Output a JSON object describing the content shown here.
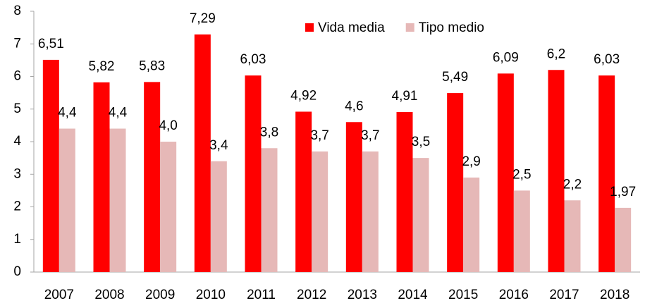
{
  "chart_data": {
    "type": "bar",
    "categories": [
      "2007",
      "2008",
      "2009",
      "2010",
      "2011",
      "2012",
      "2013",
      "2014",
      "2015",
      "2016",
      "2017",
      "2018"
    ],
    "series": [
      {
        "name": "Vida media",
        "color": "#ff0000",
        "values": [
          6.51,
          5.82,
          5.83,
          7.29,
          6.03,
          4.92,
          4.6,
          4.91,
          5.49,
          6.09,
          6.2,
          6.03
        ],
        "value_labels": [
          "6,51",
          "5,82",
          "5,83",
          "7,29",
          "6,03",
          "4,92",
          "4,6",
          "4,91",
          "5,49",
          "6,09",
          "6,2",
          "6,03"
        ]
      },
      {
        "name": "Tipo medio",
        "color": "#e6b8b7",
        "values": [
          4.4,
          4.4,
          4.0,
          3.4,
          3.8,
          3.7,
          3.7,
          3.5,
          2.9,
          2.5,
          2.2,
          1.97
        ],
        "value_labels": [
          "4,4",
          "4,4",
          "4,0",
          "3,4",
          "3,8",
          "3,7",
          "3,7",
          "3,5",
          "2,9",
          "2,5",
          "2,2",
          "1,97"
        ]
      }
    ],
    "ylim": [
      0,
      8
    ],
    "yticks": [
      0,
      1,
      2,
      3,
      4,
      5,
      6,
      7,
      8
    ],
    "grid": false,
    "legend": "top"
  }
}
